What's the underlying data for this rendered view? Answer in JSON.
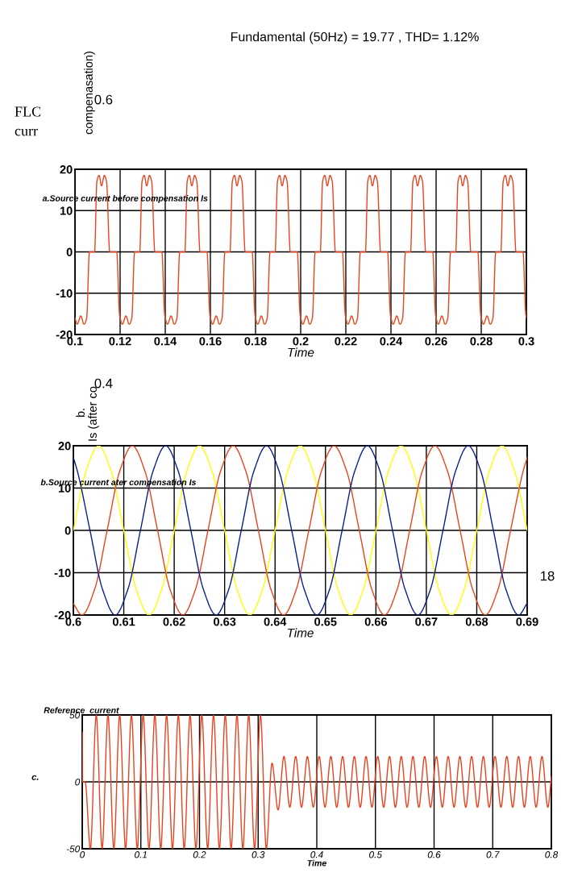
{
  "chart_data": [
    {
      "type": "other",
      "title": "Fundamental (50Hz) = 19.77 , THD= 1.12%",
      "annotations": [
        "FLC\ncurr",
        "compenasation)",
        "0.6",
        "0.4",
        "b.",
        "Is (after co",
        "18"
      ]
    },
    {
      "type": "line",
      "title": "a.Source current before compensation Is",
      "xlabel": "Time",
      "xlim": [
        0.1,
        0.3
      ],
      "ylim": [
        -20,
        20
      ],
      "xticks": [
        0.1,
        0.12,
        0.14,
        0.16,
        0.18,
        0.2,
        0.22,
        0.24,
        0.26,
        0.28,
        0.3
      ],
      "yticks": [
        -20,
        -10,
        0,
        10,
        20
      ],
      "grid": true,
      "series": [
        {
          "color": "#e8431e",
          "x": [
            0.1,
            0.101,
            0.1026,
            0.104,
            0.1052,
            0.1064,
            0.1087,
            0.1097,
            0.1107,
            0.1118,
            0.113,
            0.114,
            0.1154,
            0.1185,
            0.1197,
            0.12,
            0.121,
            0.1226,
            0.124,
            0.1252,
            0.1264,
            0.1287,
            0.1297,
            0.1307,
            0.1318,
            0.133,
            0.134,
            0.1354,
            0.1385,
            0.1397,
            0.14,
            0.141,
            0.1426,
            0.144,
            0.1452,
            0.1464,
            0.1487,
            0.1497,
            0.1507,
            0.1518,
            0.153,
            0.154,
            0.1554,
            0.1585,
            0.1597,
            0.16,
            0.161,
            0.1626,
            0.164,
            0.1652,
            0.1664,
            0.1687,
            0.1697,
            0.1707,
            0.1718,
            0.173,
            0.174,
            0.1754,
            0.1785,
            0.1797,
            0.18,
            0.181,
            0.1826,
            0.184,
            0.1852,
            0.1864,
            0.1887,
            0.1897,
            0.1907,
            0.1918,
            0.193,
            0.194,
            0.1954,
            0.1985,
            0.1997,
            0.2,
            0.201,
            0.2026,
            0.204,
            0.2052,
            0.2064,
            0.2087,
            0.2097,
            0.2107,
            0.2118,
            0.213,
            0.214,
            0.2154,
            0.2185,
            0.2197,
            0.22,
            0.221,
            0.2226,
            0.224,
            0.2252,
            0.2264,
            0.2287,
            0.2297,
            0.2307,
            0.2318,
            0.233,
            0.234,
            0.2354,
            0.2385,
            0.2397,
            0.24,
            0.241,
            0.2426,
            0.244,
            0.2452,
            0.2464,
            0.2487,
            0.2497,
            0.2507,
            0.2518,
            0.253,
            0.254,
            0.2554,
            0.2585,
            0.2597,
            0.26,
            0.261,
            0.2626,
            0.264,
            0.2652,
            0.2664,
            0.2687,
            0.2697,
            0.2707,
            0.2718,
            0.273,
            0.274,
            0.2754,
            0.2785,
            0.2797,
            0.28,
            0.281,
            0.2826,
            0.284,
            0.2852,
            0.2864,
            0.2887,
            0.2897,
            0.2907,
            0.2918,
            0.293,
            0.294,
            0.2954,
            0.2985,
            0.2997,
            0.3
          ],
          "values": [
            -16,
            -17.5,
            -15.5,
            -17.5,
            -16,
            0,
            0,
            17,
            18.5,
            16,
            18.5,
            17,
            0,
            0,
            -15,
            -16,
            -17.5,
            -15.5,
            -17.5,
            -16,
            0,
            0,
            17,
            18.5,
            16,
            18.5,
            17,
            0,
            0,
            -15,
            -16,
            -17.5,
            -15.5,
            -17.5,
            -16,
            0,
            0,
            17,
            18.5,
            16,
            18.5,
            17,
            0,
            0,
            -15,
            -16,
            -17.5,
            -15.5,
            -17.5,
            -16,
            0,
            0,
            17,
            18.5,
            16,
            18.5,
            17,
            0,
            0,
            -15,
            -16,
            -17.5,
            -15.5,
            -17.5,
            -16,
            0,
            0,
            17,
            18.5,
            16,
            18.5,
            17,
            0,
            0,
            -15,
            -16,
            -17.5,
            -15.5,
            -17.5,
            -16,
            0,
            0,
            17,
            18.5,
            16,
            18.5,
            17,
            0,
            0,
            -15,
            -16,
            -17.5,
            -15.5,
            -17.5,
            -16,
            0,
            0,
            17,
            18.5,
            16,
            18.5,
            17,
            0,
            0,
            -15,
            -16,
            -17.5,
            -15.5,
            -17.5,
            -16,
            0,
            0,
            17,
            18.5,
            16,
            18.5,
            17,
            0,
            0,
            -15,
            -16,
            -17.5,
            -15.5,
            -17.5,
            -16,
            0,
            0,
            17,
            18.5,
            16,
            18.5,
            17,
            0,
            0,
            -15,
            -16,
            -17.5,
            -15.5,
            -17.5,
            -16,
            0,
            0,
            17,
            18.5,
            16,
            18.5,
            17,
            0,
            0,
            -15,
            -16
          ]
        }
      ]
    },
    {
      "type": "line",
      "title": "b.Source current ater compensation Is",
      "xlabel": "Time",
      "xlim": [
        0.6,
        0.69
      ],
      "ylim": [
        -20,
        20
      ],
      "xticks": [
        0.6,
        0.61,
        0.62,
        0.63,
        0.64,
        0.65,
        0.66,
        0.67,
        0.68,
        0.69
      ],
      "yticks": [
        -20,
        -10,
        0,
        10,
        20
      ],
      "grid": true,
      "series": [
        {
          "color": "#ffff00",
          "x": [
            0.6,
            0.6025,
            0.605,
            0.6075,
            0.61,
            0.6125,
            0.615,
            0.6175,
            0.62,
            0.6225,
            0.625,
            0.6275,
            0.63,
            0.6325,
            0.635,
            0.6375,
            0.64,
            0.6425,
            0.645,
            0.6475,
            0.65,
            0.6525,
            0.655,
            0.6575,
            0.66,
            0.6625,
            0.665,
            0.6675,
            0.67,
            0.6725,
            0.675,
            0.6775,
            0.68,
            0.6825,
            0.685,
            0.6875,
            0.69
          ],
          "values": [
            0,
            14,
            20,
            14,
            0,
            -14,
            -20,
            -14,
            0,
            14,
            20,
            14,
            0,
            -14,
            -20,
            -14,
            0,
            14,
            20,
            14,
            0,
            -14,
            -20,
            -14,
            0,
            14,
            20,
            14,
            0,
            -14,
            -20,
            -14,
            0,
            14,
            20,
            14,
            0
          ]
        },
        {
          "color": "#e8431e",
          "x": [
            0.6,
            0.6017,
            0.6042,
            0.6067,
            0.6092,
            0.6117,
            0.6142,
            0.6167,
            0.6192,
            0.6217,
            0.6242,
            0.6267,
            0.6292,
            0.6317,
            0.6342,
            0.6367,
            0.6392,
            0.6417,
            0.6442,
            0.6467,
            0.6492,
            0.6517,
            0.6542,
            0.6567,
            0.6592,
            0.6617,
            0.6642,
            0.6667,
            0.6692,
            0.6717,
            0.6742,
            0.6767,
            0.6792,
            0.6817,
            0.6842,
            0.6867,
            0.6892,
            0.69
          ],
          "values": [
            -17.3,
            -20,
            -14,
            0,
            14,
            20,
            14,
            0,
            -14,
            -20,
            -14,
            0,
            14,
            20,
            14,
            0,
            -14,
            -20,
            -14,
            0,
            14,
            20,
            14,
            0,
            -14,
            -20,
            -14,
            0,
            14,
            20,
            14,
            0,
            -14,
            -20,
            -14,
            0,
            14,
            17.2
          ]
        },
        {
          "color": "#0a1f8f",
          "x": [
            0.6,
            0.6008,
            0.6033,
            0.6058,
            0.6083,
            0.6108,
            0.6133,
            0.6158,
            0.6183,
            0.6208,
            0.6233,
            0.6258,
            0.6283,
            0.6308,
            0.6333,
            0.6358,
            0.6383,
            0.6408,
            0.6433,
            0.6458,
            0.6483,
            0.6508,
            0.6533,
            0.6558,
            0.6583,
            0.6608,
            0.6633,
            0.6658,
            0.6683,
            0.6708,
            0.6733,
            0.6758,
            0.6783,
            0.6808,
            0.6833,
            0.6858,
            0.6883,
            0.69
          ],
          "values": [
            17.2,
            14,
            0,
            -14,
            -20,
            -14,
            0,
            14,
            20,
            14,
            0,
            -14,
            -20,
            -14,
            0,
            14,
            20,
            14,
            0,
            -14,
            -20,
            -14,
            0,
            14,
            20,
            14,
            0,
            -14,
            -20,
            -14,
            0,
            14,
            20,
            14,
            0,
            -14,
            -20,
            -17.2
          ]
        }
      ]
    },
    {
      "type": "line",
      "title": "Reference  current",
      "xlabel": "Time",
      "ylabel": "c.",
      "xlim": [
        0,
        0.8
      ],
      "ylim": [
        -50,
        50
      ],
      "xticks": [
        0,
        0.1,
        0.2,
        0.3,
        0.4,
        0.5,
        0.6,
        0.7,
        0.8
      ],
      "yticks": [
        -50,
        0,
        50
      ],
      "grid": true,
      "series": [
        {
          "color": "#e8431e",
          "x": [
            0,
            0.0003,
            0.0006,
            0.005,
            0.0139,
            0.0239,
            0.0339,
            0.0439,
            0.0539,
            0.0639,
            0.0739,
            0.0839,
            0.0939,
            0.1039,
            0.1139,
            0.1239,
            0.1339,
            0.1439,
            0.1539,
            0.1639,
            0.1739,
            0.1839,
            0.1939,
            0.2039,
            0.2139,
            0.2239,
            0.2339,
            0.2439,
            0.2539,
            0.2639,
            0.2739,
            0.2839,
            0.2939,
            0.3039,
            0.3139,
            0.3236,
            0.334,
            0.344,
            0.354,
            0.364,
            0.374,
            0.384,
            0.394,
            0.404,
            0.414,
            0.424,
            0.434,
            0.444,
            0.454,
            0.464,
            0.474,
            0.484,
            0.494,
            0.504,
            0.514,
            0.524,
            0.534,
            0.544,
            0.554,
            0.564,
            0.574,
            0.584,
            0.594,
            0.604,
            0.614,
            0.624,
            0.634,
            0.644,
            0.654,
            0.664,
            0.674,
            0.684,
            0.694,
            0.704,
            0.714,
            0.724,
            0.734,
            0.744,
            0.754,
            0.764,
            0.774,
            0.784,
            0.794,
            0.8
          ],
          "values": [
            0,
            37,
            0,
            0,
            -50,
            50,
            -50,
            50,
            -50,
            50,
            -50,
            50,
            -50,
            50,
            -50,
            50,
            -50,
            50,
            -50,
            50,
            -50,
            50,
            -50,
            50,
            -50,
            50,
            -50,
            50,
            -50,
            50,
            -50,
            50,
            -50,
            50,
            -50,
            14,
            -21,
            19,
            -19,
            19,
            -19,
            19,
            -19,
            19,
            -19,
            19,
            -19,
            19,
            -19,
            19,
            -19,
            19,
            -19,
            19,
            -19,
            19,
            -19,
            19,
            -19,
            19,
            -19,
            19,
            -19,
            19,
            -19,
            19,
            -19,
            19,
            -19,
            19,
            -19,
            19,
            -19,
            19,
            -19,
            19,
            -19,
            19,
            -19,
            19,
            -19,
            19,
            -19,
            4
          ]
        }
      ]
    }
  ]
}
